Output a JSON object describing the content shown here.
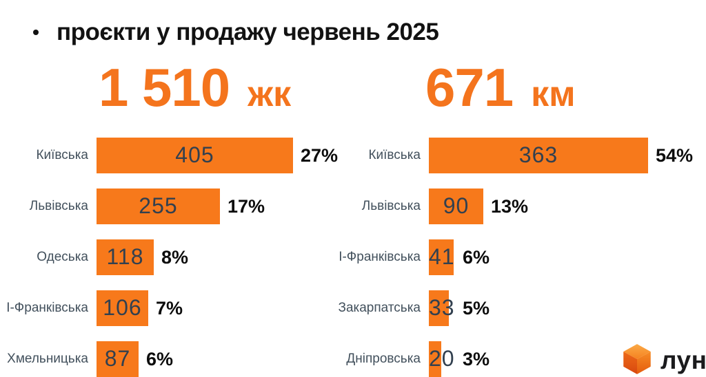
{
  "title": {
    "bullet": "•",
    "text": "проєкти у продажу червень 2025"
  },
  "headlines": [
    {
      "value": "1 510",
      "unit": "жк"
    },
    {
      "value": "671",
      "unit": "км"
    }
  ],
  "chart_data": [
    {
      "type": "bar",
      "orientation": "horizontal",
      "title": "1 510 жк",
      "categories": [
        "Київська",
        "Львівська",
        "Одеська",
        "І-Франківська",
        "Хмельницька"
      ],
      "values": [
        405,
        255,
        118,
        106,
        87
      ],
      "percent_labels": [
        "27%",
        "17%",
        "8%",
        "7%",
        "6%"
      ],
      "xlim": [
        0,
        405
      ],
      "grid": false,
      "legend": false,
      "value_labels_position": "inside-center",
      "percent_labels_position": "right-of-bar"
    },
    {
      "type": "bar",
      "orientation": "horizontal",
      "title": "671 км",
      "categories": [
        "Київська",
        "Львівська",
        "І-Франківська",
        "Закарпатська",
        "Дніпровська"
      ],
      "values": [
        363,
        90,
        41,
        33,
        20
      ],
      "percent_labels": [
        "54%",
        "13%",
        "6%",
        "5%",
        "3%"
      ],
      "xlim": [
        0,
        363
      ],
      "grid": false,
      "legend": false,
      "value_labels_position": "inside-center",
      "percent_labels_position": "right-of-bar"
    }
  ],
  "logo": {
    "icon": "cube-icon",
    "text": "лун"
  },
  "colors": {
    "background": "#FFFFFF",
    "accent_orange": "#F4741D",
    "bar_orange": "#F7791B",
    "title_text": "#121212",
    "label_text": "#42505C",
    "value_text": "#32404F",
    "percent_text": "#0D0D0D",
    "logo_text": "#1B1B1D",
    "cube_top_light": "#FBAA47",
    "cube_top_dark": "#F58220",
    "cube_left_light": "#EE6A18",
    "cube_left_dark": "#D7480F",
    "cube_right_light": "#F68C26",
    "cube_right_dark": "#E55C0E"
  }
}
